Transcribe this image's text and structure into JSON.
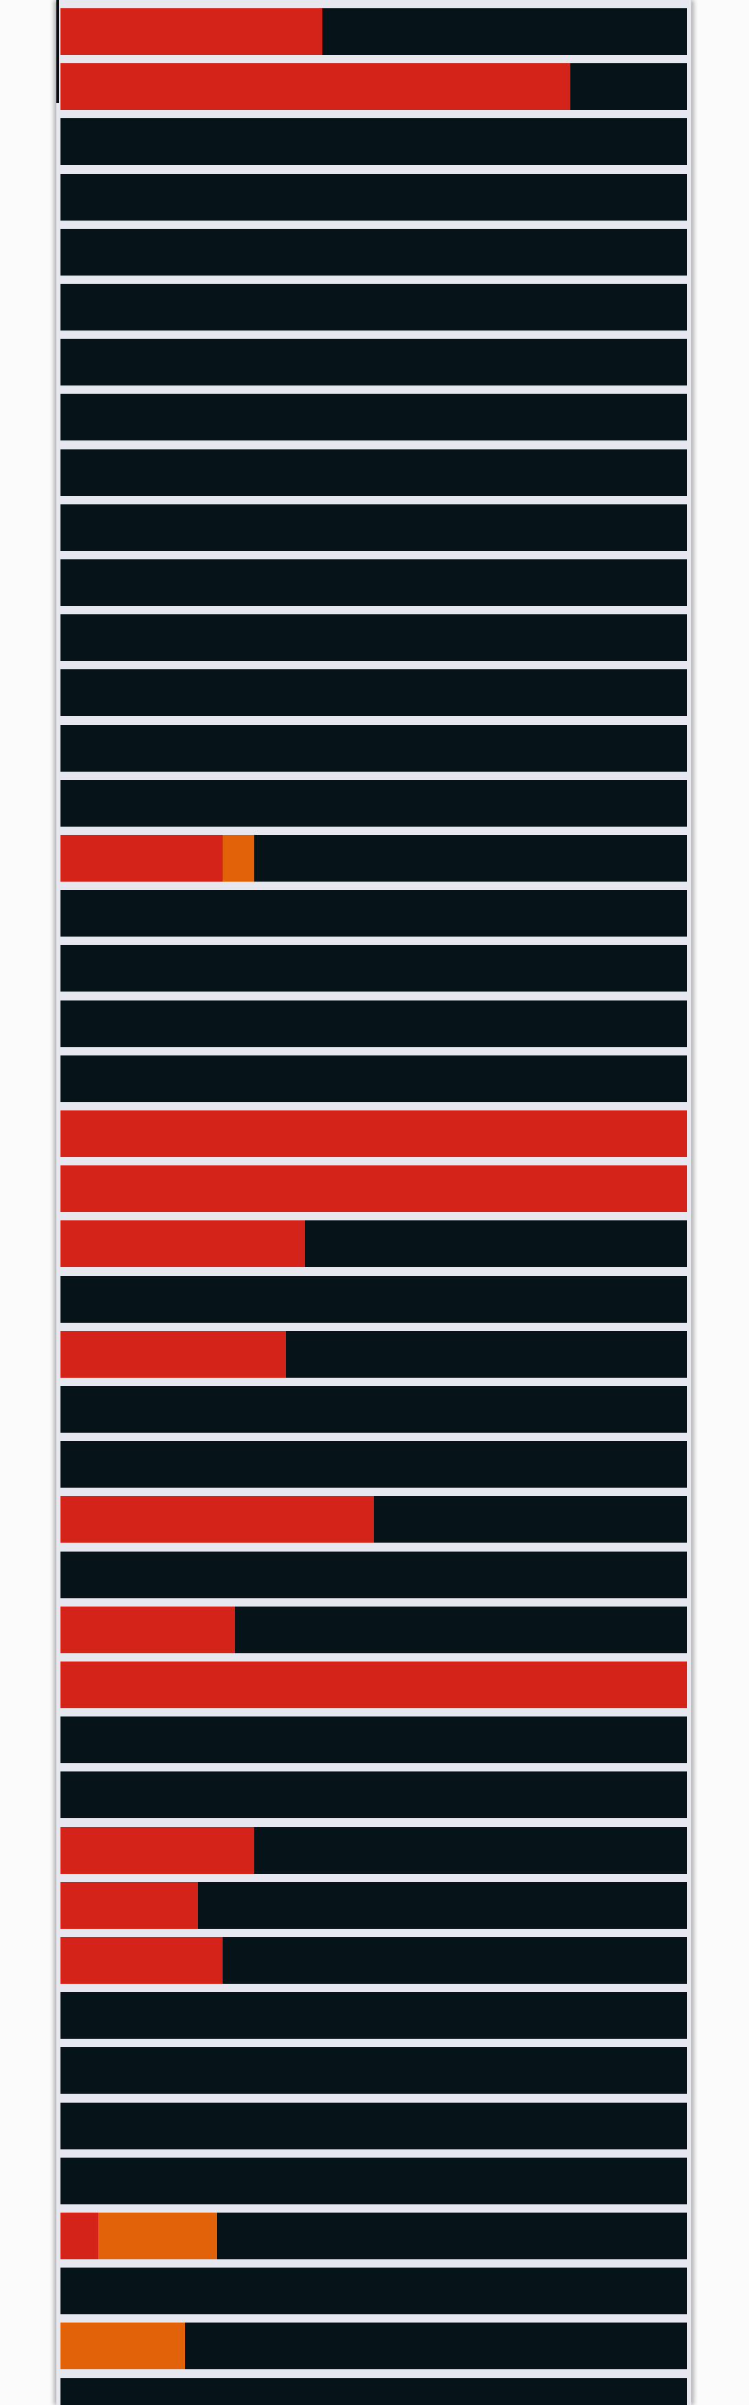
{
  "colors": {
    "track": "#061319",
    "red": "#d42419",
    "orange": "#e2620a",
    "gap": "#e7e8ef"
  },
  "bars": [
    {
      "segments": [
        {
          "color": "red",
          "fraction": 0.418
        }
      ]
    },
    {
      "segments": [
        {
          "color": "red",
          "fraction": 0.814
        }
      ]
    },
    {
      "segments": []
    },
    {
      "segments": []
    },
    {
      "segments": []
    },
    {
      "segments": []
    },
    {
      "segments": []
    },
    {
      "segments": []
    },
    {
      "segments": []
    },
    {
      "segments": []
    },
    {
      "segments": []
    },
    {
      "segments": []
    },
    {
      "segments": []
    },
    {
      "segments": []
    },
    {
      "segments": []
    },
    {
      "segments": [
        {
          "color": "red",
          "fraction": 0.259
        },
        {
          "color": "orange",
          "fraction": 0.05
        }
      ]
    },
    {
      "segments": []
    },
    {
      "segments": []
    },
    {
      "segments": []
    },
    {
      "segments": []
    },
    {
      "segments": [
        {
          "color": "red",
          "fraction": 1.0
        }
      ]
    },
    {
      "segments": [
        {
          "color": "red",
          "fraction": 1.0
        }
      ]
    },
    {
      "segments": [
        {
          "color": "red",
          "fraction": 0.39
        }
      ]
    },
    {
      "segments": []
    },
    {
      "segments": [
        {
          "color": "red",
          "fraction": 0.36
        }
      ]
    },
    {
      "segments": []
    },
    {
      "segments": []
    },
    {
      "segments": [
        {
          "color": "red",
          "fraction": 0.5
        }
      ]
    },
    {
      "segments": []
    },
    {
      "segments": [
        {
          "color": "red",
          "fraction": 0.279
        }
      ]
    },
    {
      "segments": [
        {
          "color": "red",
          "fraction": 1.0
        }
      ]
    },
    {
      "segments": []
    },
    {
      "segments": []
    },
    {
      "segments": [
        {
          "color": "red",
          "fraction": 0.309
        }
      ]
    },
    {
      "segments": [
        {
          "color": "red",
          "fraction": 0.219
        }
      ]
    },
    {
      "segments": [
        {
          "color": "red",
          "fraction": 0.259
        }
      ]
    },
    {
      "segments": []
    },
    {
      "segments": []
    },
    {
      "segments": []
    },
    {
      "segments": []
    },
    {
      "segments": [
        {
          "color": "red",
          "fraction": 0.06
        },
        {
          "color": "orange",
          "fraction": 0.19
        }
      ]
    },
    {
      "segments": []
    },
    {
      "segments": [
        {
          "color": "orange",
          "fraction": 0.199
        }
      ]
    },
    {
      "segments": []
    }
  ]
}
